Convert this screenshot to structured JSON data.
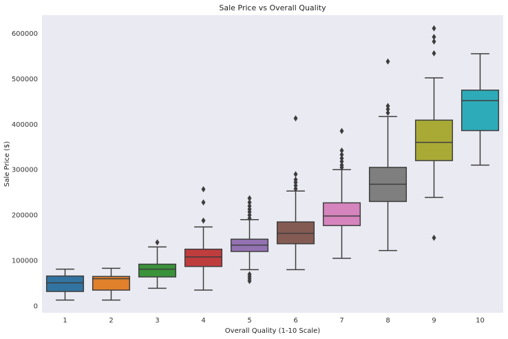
{
  "chart_data": {
    "type": "box",
    "title": "Sale Price vs Overall Quality",
    "xlabel": "Overall Quality (1-10 Scale)",
    "ylabel": "Sale Price ($)",
    "ylim": [
      -15000,
      640000
    ],
    "yticks": [
      0,
      100000,
      200000,
      300000,
      400000,
      500000,
      600000
    ],
    "ytick_labels": [
      "0",
      "100000",
      "200000",
      "300000",
      "400000",
      "500000",
      "600000"
    ],
    "grid": false,
    "background": "#eaeaf2",
    "categories": [
      "1",
      "2",
      "3",
      "4",
      "5",
      "6",
      "7",
      "8",
      "9",
      "10"
    ],
    "boxes": [
      {
        "category": "1",
        "color": "#3274a1",
        "whisker_low": 13000,
        "q1": 32000,
        "median": 51000,
        "q3": 66000,
        "whisker_high": 81000,
        "outliers": []
      },
      {
        "category": "2",
        "color": "#e1812c",
        "whisker_low": 13000,
        "q1": 35000,
        "median": 60000,
        "q3": 65000,
        "whisker_high": 83000,
        "outliers": []
      },
      {
        "category": "3",
        "color": "#3a923a",
        "whisker_low": 39000,
        "q1": 64000,
        "median": 81000,
        "q3": 92000,
        "whisker_high": 130000,
        "outliers": [
          140000
        ]
      },
      {
        "category": "4",
        "color": "#c03d3e",
        "whisker_low": 35000,
        "q1": 87000,
        "median": 108000,
        "q3": 125000,
        "whisker_high": 174000,
        "outliers": [
          188000,
          228000,
          257000
        ]
      },
      {
        "category": "5",
        "color": "#9372b2",
        "whisker_low": 80000,
        "q1": 120000,
        "median": 134000,
        "q3": 147000,
        "whisker_high": 190000,
        "outliers": [
          55000,
          60000,
          65000,
          70000,
          193000,
          200000,
          207000,
          213000,
          220000,
          228000,
          237000
        ]
      },
      {
        "category": "6",
        "color": "#845b53",
        "whisker_low": 80000,
        "q1": 137000,
        "median": 160000,
        "q3": 185000,
        "whisker_high": 253000,
        "outliers": [
          258000,
          265000,
          272000,
          278000,
          290000,
          413000
        ]
      },
      {
        "category": "7",
        "color": "#d684bd",
        "whisker_low": 105000,
        "q1": 177000,
        "median": 198000,
        "q3": 227000,
        "whisker_high": 300000,
        "outliers": [
          305000,
          310000,
          318000,
          325000,
          333000,
          342000,
          385000
        ]
      },
      {
        "category": "8",
        "color": "#7f7f7f",
        "whisker_low": 122000,
        "q1": 230000,
        "median": 268000,
        "q3": 305000,
        "whisker_high": 417000,
        "outliers": [
          425000,
          433000,
          440000,
          538000
        ]
      },
      {
        "category": "9",
        "color": "#a9aa35",
        "whisker_low": 239000,
        "q1": 320000,
        "median": 360000,
        "q3": 409000,
        "whisker_high": 502000,
        "outliers": [
          150000,
          556000,
          582000,
          592000,
          611000
        ]
      },
      {
        "category": "10",
        "color": "#2eabb8",
        "whisker_low": 310000,
        "q1": 386000,
        "median": 452000,
        "q3": 475000,
        "whisker_high": 555000,
        "outliers": []
      }
    ]
  }
}
